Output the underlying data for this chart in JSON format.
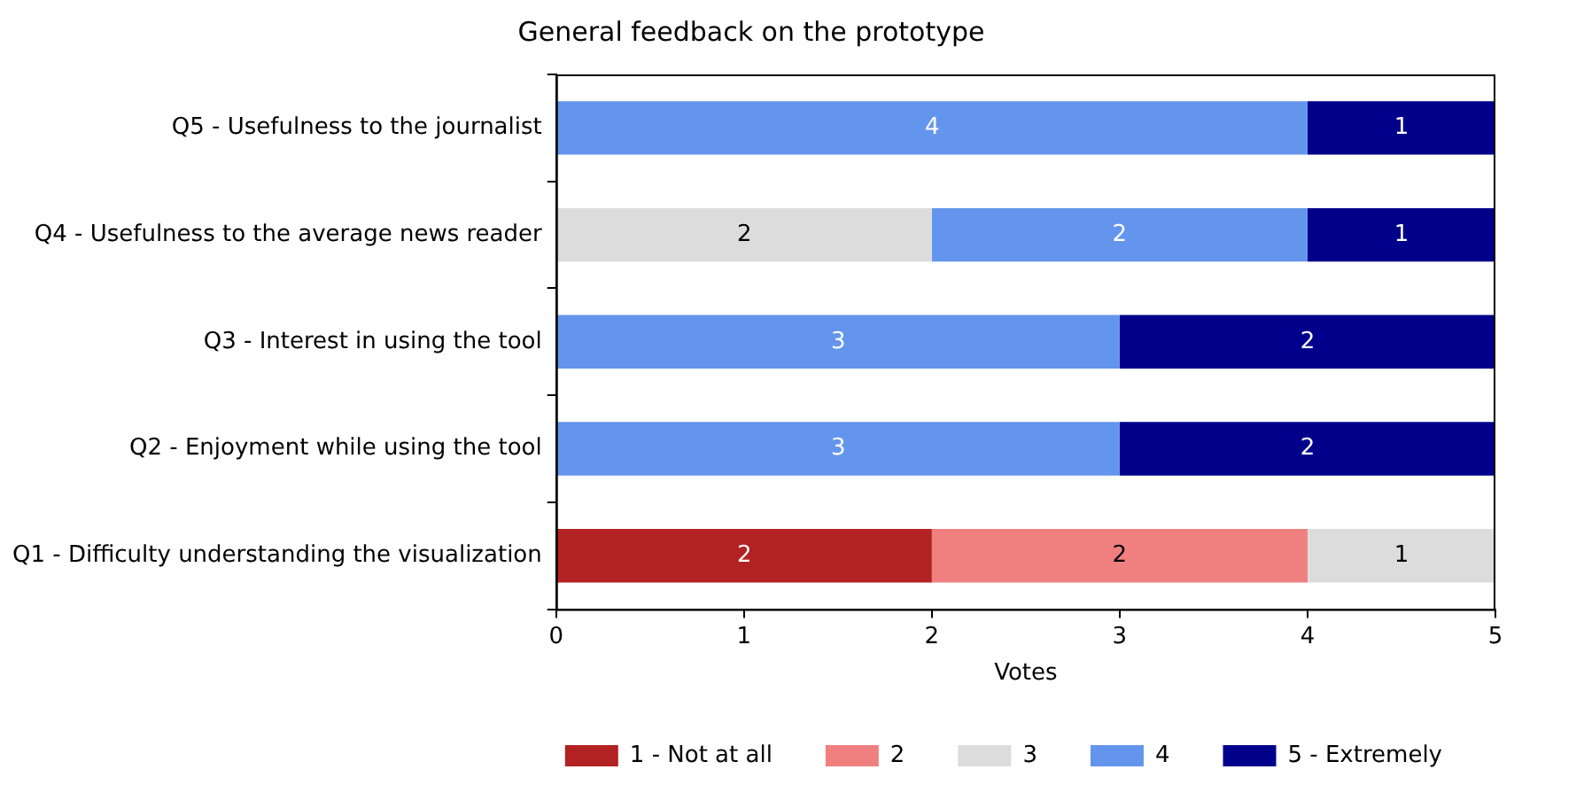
{
  "chart_data": {
    "type": "bar",
    "orientation": "horizontal",
    "stacked": true,
    "title": "General feedback on the prototype",
    "xlabel": "Votes",
    "categories": [
      "Q5 - Usefulness to the journalist",
      "Q4 - Usefulness to the average news reader",
      "Q3 - Interest in using the tool",
      "Q2 - Enjoyment while using the tool",
      "Q1 - Difficulty understanding the visualization"
    ],
    "series": [
      {
        "name": "1 - Not at all",
        "color": "#b22222",
        "values": [
          null,
          null,
          null,
          null,
          2
        ]
      },
      {
        "name": "2",
        "color": "#f08080",
        "values": [
          null,
          null,
          null,
          null,
          2
        ]
      },
      {
        "name": "3",
        "color": "#dcdcdc",
        "values": [
          null,
          2,
          null,
          null,
          1
        ]
      },
      {
        "name": "4",
        "color": "#6495ed",
        "values": [
          4,
          2,
          3,
          3,
          null
        ]
      },
      {
        "name": "5 - Extremely",
        "color": "#00008b",
        "values": [
          1,
          1,
          2,
          2,
          null
        ]
      }
    ],
    "xlim": [
      0,
      5
    ],
    "xticks": [
      0,
      1,
      2,
      3,
      4,
      5
    ],
    "data_labels": true,
    "legend": "bottom",
    "grid": false
  }
}
